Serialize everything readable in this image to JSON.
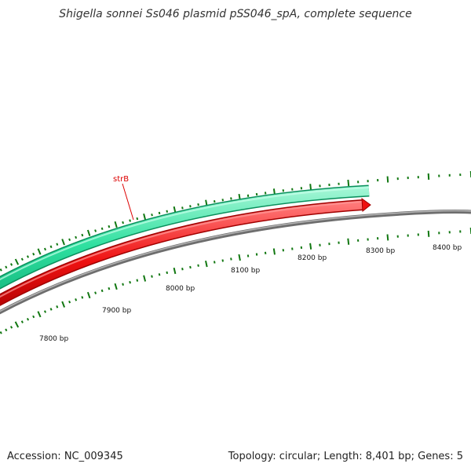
{
  "map": {
    "title": "Shigella sonnei Ss046 plasmid pSS046_spA, complete sequence",
    "accession": "Accession: NC_009345",
    "summary": "Topology: circular; Length: 8,401 bp; Genes: 5",
    "colors": {
      "backbone": "#8c8c8c",
      "ring_forward": "#2fe0a0",
      "ring_reverse": "#ee1111",
      "ticks": "#117711",
      "gene_label": "#dd0000"
    },
    "gene_label": "strB",
    "bp_labels": [
      "7800 bp",
      "7900 bp",
      "8000 bp",
      "8100 bp",
      "8200 bp",
      "8300 bp",
      "8400 bp"
    ]
  }
}
